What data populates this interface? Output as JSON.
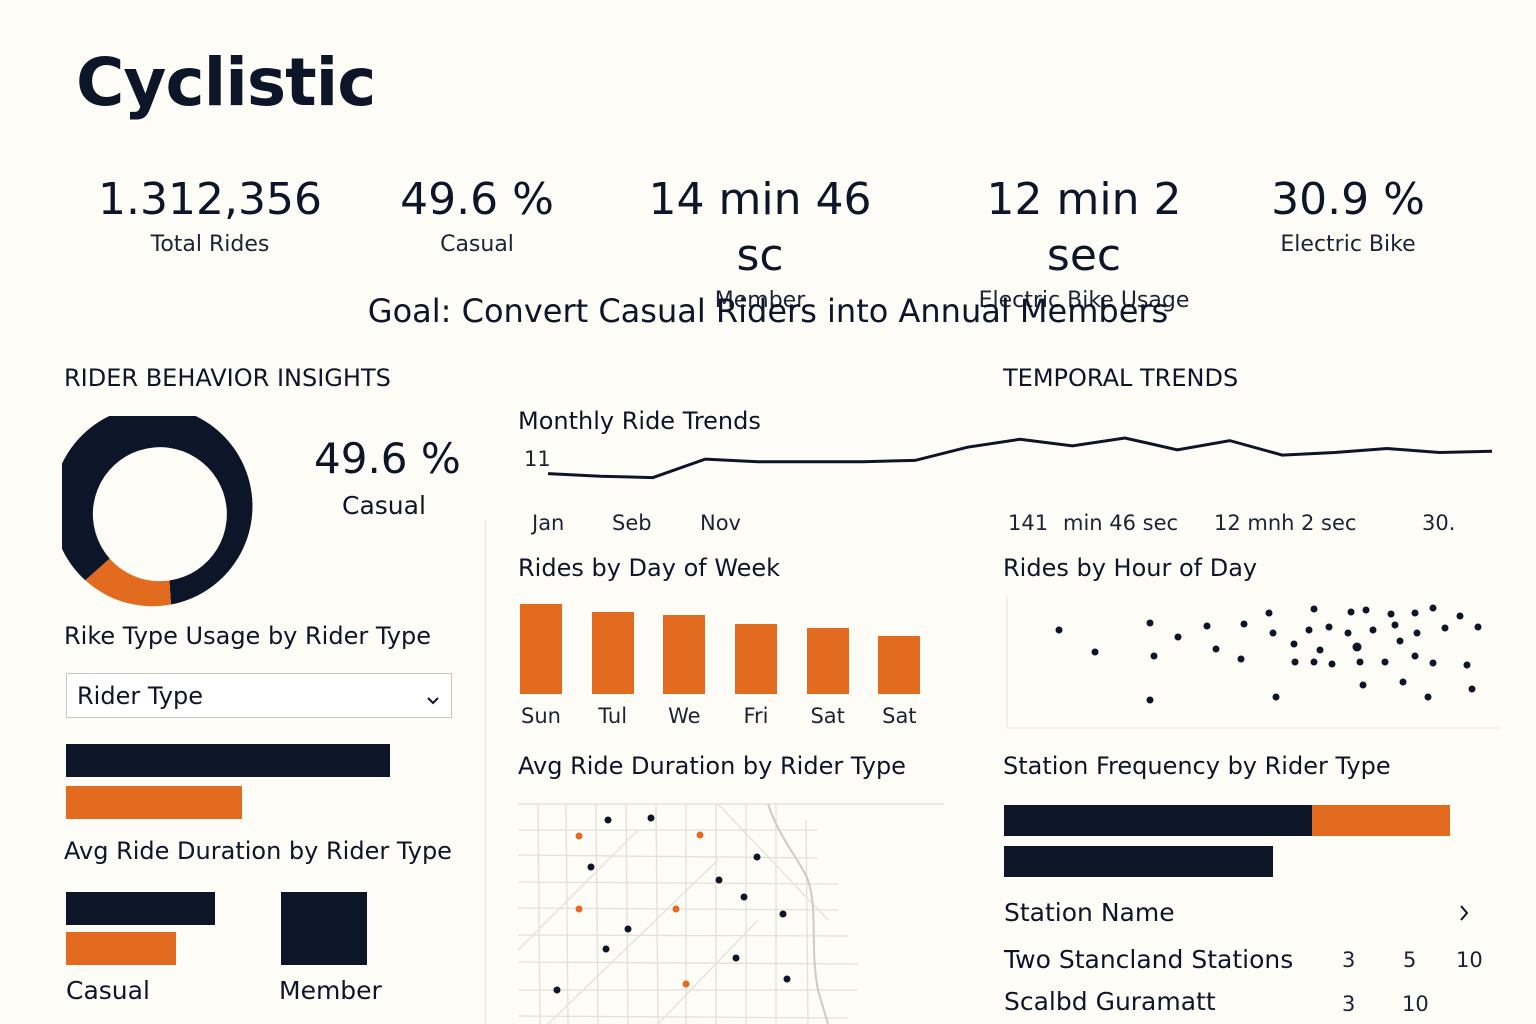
{
  "app": {
    "title": "Cyclistic"
  },
  "kpis": [
    {
      "value": "1.312,356",
      "label": "Total Rides"
    },
    {
      "value": "49.6 %",
      "label": "Casual"
    },
    {
      "value": "14 min 46 sc",
      "label": "Member"
    },
    {
      "value": "12 min 2 sec",
      "label": "Electric Bike Usage"
    },
    {
      "value": "30.9 %",
      "label": "Electric Bike"
    }
  ],
  "goal": "Goal: Convert Casual Riders into Annual Members",
  "sections": {
    "rider_behavior": "RIDER BEHAVIOR INSIGHTS",
    "temporal": "TEMPORAL TRENDS"
  },
  "donut": {
    "value": "49.6 %",
    "label": "Casual"
  },
  "bike_type": {
    "title": "Rike Type Usage by Rider Type",
    "select_value": "Rider Type"
  },
  "avg_duration_left": {
    "title": "Avg Ride Duration by Rider Type",
    "label_casual": "Casual",
    "label_member": "Member"
  },
  "monthly": {
    "title": "Monthly Ride Trends",
    "y_label": "11",
    "x_labels": [
      "Jan",
      "Seb",
      "Nov",
      "141",
      "min 46 sec",
      "12 mnh",
      "2 sec",
      "30."
    ]
  },
  "day_of_week": {
    "title": "Rides by Day of Week"
  },
  "hour_of_day": {
    "title": "Rides by Hour of Day"
  },
  "avg_duration_map": {
    "title": "Avg Ride Duration by Rider Type"
  },
  "station_freq": {
    "title": "Station Frequency by Rider Type",
    "header": "Station Name",
    "rows": [
      {
        "name": "Two Stancland Stations",
        "c1": "3",
        "c2": "5",
        "c3": "10"
      },
      {
        "name": "Scalbd Guramatt",
        "c1": "3",
        "c2": "10",
        "c3": ""
      }
    ]
  },
  "colors": {
    "navy": "#0d1628",
    "orange": "#e26b1f"
  },
  "chart_data": [
    {
      "type": "bar",
      "title": "Rides by Day of Week",
      "categories": [
        "Sun",
        "Tul",
        "We",
        "Fri",
        "Sat",
        "Sat"
      ],
      "values": [
        88,
        80,
        77,
        68,
        65,
        57
      ]
    },
    {
      "type": "line",
      "title": "Monthly Ride Trends",
      "values": [
        40,
        36,
        34,
        62,
        58,
        58,
        58,
        60,
        80,
        92,
        82,
        94,
        76,
        90,
        68,
        72,
        78,
        72,
        74
      ]
    }
  ]
}
